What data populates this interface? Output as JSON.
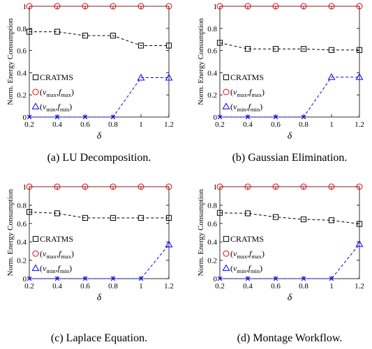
{
  "chart_data": [
    {
      "type": "line",
      "caption": "(a) LU Decomposition.",
      "xlabel": "δ",
      "ylabel": "Norm. Energy Consumption",
      "x": [
        0.2,
        0.4,
        0.6,
        0.8,
        1,
        1.2
      ],
      "x_ticks": [
        "0.2",
        "0.4",
        "0.6",
        "0.8",
        "1",
        "1.2"
      ],
      "y_ticks": [
        "0",
        "0.2",
        "0.4",
        "0.6",
        "0.8",
        "1"
      ],
      "ylim": [
        0,
        1
      ],
      "xlim": [
        0.2,
        1.2
      ],
      "legend_position": "lower-left",
      "series": [
        {
          "name": "CRATMS",
          "values": [
            0.77,
            0.77,
            0.735,
            0.735,
            0.645,
            0.645
          ],
          "color": "#000000",
          "marker": "square"
        },
        {
          "name": "(v_max, f_max)",
          "values": [
            1,
            1,
            1,
            1,
            1,
            1
          ],
          "color": "#e8000b",
          "marker": "circle"
        },
        {
          "name": "(v_min, f_min)",
          "values": [
            0,
            0,
            0,
            0,
            0.355,
            0.355
          ],
          "color": "#0000ff",
          "marker": "triangle"
        }
      ]
    },
    {
      "type": "line",
      "caption": "(b) Gaussian Elimination.",
      "xlabel": "δ",
      "ylabel": "Norm. Energy Consumption",
      "x": [
        0.2,
        0.4,
        0.6,
        0.8,
        1,
        1.2
      ],
      "x_ticks": [
        "0.2",
        "0.4",
        "0.6",
        "0.8",
        "1",
        "1.2"
      ],
      "y_ticks": [
        "0",
        "0.2",
        "0.4",
        "0.6",
        "0.8",
        "1"
      ],
      "ylim": [
        0,
        1
      ],
      "xlim": [
        0.2,
        1.2
      ],
      "legend_position": "lower-left",
      "series": [
        {
          "name": "CRATMS",
          "values": [
            0.67,
            0.615,
            0.615,
            0.615,
            0.605,
            0.605
          ],
          "color": "#000000",
          "marker": "square"
        },
        {
          "name": "(v_max, f_max)",
          "values": [
            1,
            1,
            1,
            1,
            1,
            1
          ],
          "color": "#e8000b",
          "marker": "circle"
        },
        {
          "name": "(v_min, f_min)",
          "values": [
            0,
            0,
            0,
            0,
            0.36,
            0.36
          ],
          "color": "#0000ff",
          "marker": "triangle"
        }
      ]
    },
    {
      "type": "line",
      "caption": "(c) Laplace Equation.",
      "xlabel": "δ",
      "ylabel": "Norm. Energy Consumption",
      "x": [
        0.2,
        0.4,
        0.6,
        0.8,
        1,
        1.2
      ],
      "x_ticks": [
        "0.2",
        "0.4",
        "0.6",
        "0.8",
        "1",
        "1.2"
      ],
      "y_ticks": [
        "0",
        "0.2",
        "0.4",
        "0.6",
        "0.8",
        "1"
      ],
      "ylim": [
        0,
        1
      ],
      "xlim": [
        0.2,
        1.2
      ],
      "legend_position": "lower-left",
      "series": [
        {
          "name": "CRATMS",
          "values": [
            0.725,
            0.71,
            0.66,
            0.66,
            0.66,
            0.66
          ],
          "color": "#000000",
          "marker": "square"
        },
        {
          "name": "(v_max, f_max)",
          "values": [
            1,
            1,
            1,
            1,
            1,
            1
          ],
          "color": "#e8000b",
          "marker": "circle"
        },
        {
          "name": "(v_min, f_min)",
          "values": [
            0,
            0,
            0,
            0,
            0,
            0.37
          ],
          "color": "#0000ff",
          "marker": "triangle"
        }
      ]
    },
    {
      "type": "line",
      "caption": "(d) Montage Workflow.",
      "xlabel": "δ",
      "ylabel": "Norm. Energy Consumption",
      "x": [
        0.2,
        0.4,
        0.6,
        0.8,
        1,
        1.2
      ],
      "x_ticks": [
        "0.2",
        "0.4",
        "0.6",
        "0.8",
        "1",
        "1.2"
      ],
      "y_ticks": [
        "0",
        "0.2",
        "0.4",
        "0.6",
        "0.8",
        "1"
      ],
      "ylim": [
        0,
        1
      ],
      "xlim": [
        0.2,
        1.2
      ],
      "legend_position": "lower-left",
      "series": [
        {
          "name": "CRATMS",
          "values": [
            0.715,
            0.71,
            0.67,
            0.645,
            0.635,
            0.595
          ],
          "color": "#000000",
          "marker": "square"
        },
        {
          "name": "(v_max, f_max)",
          "values": [
            1,
            1,
            1,
            1,
            1,
            1
          ],
          "color": "#e8000b",
          "marker": "circle"
        },
        {
          "name": "(v_min, f_min)",
          "values": [
            0,
            0,
            0,
            0,
            0,
            0.375
          ],
          "color": "#0000ff",
          "marker": "triangle"
        }
      ]
    }
  ]
}
